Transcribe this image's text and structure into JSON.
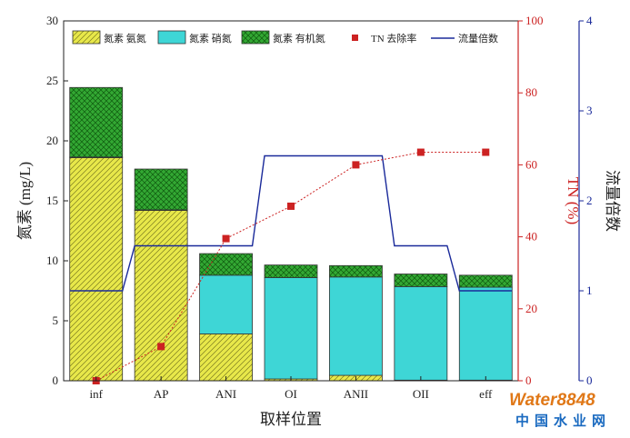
{
  "chart_data": {
    "type": "bar",
    "xlabel": "取样位置",
    "ylabel_left": "氮素 (mg/L)",
    "ylabel_right_1": "TN (%)",
    "ylabel_right_2": "流量倍数",
    "categories": [
      "inf",
      "AP",
      "ANI",
      "OI",
      "ANII",
      "OII",
      "eff"
    ],
    "ylim_left": [
      0,
      30
    ],
    "yticks_left": [
      "0",
      "5",
      "10",
      "15",
      "20",
      "25",
      "30"
    ],
    "ylim_right_1": [
      0,
      100
    ],
    "yticks_right_1": [
      "0",
      "20",
      "40",
      "60",
      "80",
      "100"
    ],
    "ylim_right_2": [
      0,
      4
    ],
    "yticks_right_2": [
      "0",
      "1",
      "2",
      "3",
      "4"
    ],
    "stacked_series": [
      {
        "name": "氮素 氨氮",
        "values": [
          18.6,
          14.2,
          3.9,
          0.15,
          0.45,
          0.05,
          0.05
        ],
        "color": "#e8e84a",
        "pattern": "hatch"
      },
      {
        "name": "氮素 硝氮",
        "values": [
          0.05,
          0.05,
          4.9,
          8.45,
          8.2,
          7.8,
          7.75
        ],
        "color": "#3ed6d6",
        "pattern": "solid"
      },
      {
        "name": "氮素 有机氮",
        "values": [
          5.8,
          3.4,
          1.8,
          1.05,
          0.95,
          1.05,
          1.0
        ],
        "color": "#33a833",
        "pattern": "cross"
      }
    ],
    "removal_series": {
      "name": "TN 去除率",
      "axis": "right_1",
      "values": [
        0,
        9.5,
        39.5,
        48.5,
        60,
        63.5,
        63.5
      ],
      "color": "#cc2222"
    },
    "flow_series": {
      "name": "流量倍数",
      "axis": "right_2",
      "step_values": [
        1.0,
        1.5,
        1.5,
        2.5,
        2.5,
        1.5,
        1.0
      ],
      "color": "#1a2a9a"
    }
  },
  "colors": {
    "left_axis": "#222222",
    "right_axis_1": "#cc2222",
    "right_axis_2": "#1a2a9a",
    "bar_outline": "#333333"
  },
  "watermark": {
    "brand": "Water8848",
    "cn_text": "中国水业网"
  }
}
